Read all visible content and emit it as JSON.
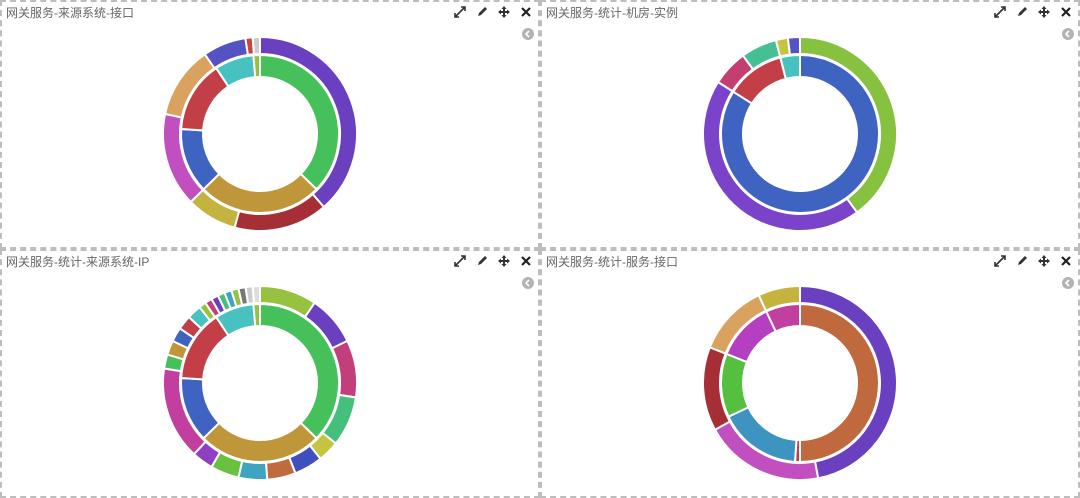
{
  "icons": [
    "expand-icon",
    "edit-icon",
    "move-icon",
    "close-icon",
    "collapse-icon"
  ],
  "panels": [
    {
      "title": "网关服务-来源系统-接口",
      "chart_data": {
        "type": "pie",
        "inner": [
          {
            "value": 28,
            "color": "#45c05a"
          },
          {
            "value": 19,
            "color": "#c0963a"
          },
          {
            "value": 10,
            "color": "#3f63c0"
          },
          {
            "value": 11,
            "color": "#c23f48"
          },
          {
            "value": 6,
            "color": "#47c2c0"
          },
          {
            "value": 1,
            "color": "#96c23f"
          }
        ],
        "outer": [
          {
            "value": 32,
            "color": "#6a3fc0"
          },
          {
            "value": 13,
            "color": "#a52f35"
          },
          {
            "value": 7,
            "color": "#c4b33f"
          },
          {
            "value": 13,
            "color": "#c24fbf"
          },
          {
            "value": 10,
            "color": "#d9a25f"
          },
          {
            "value": 6,
            "color": "#5552c4"
          },
          {
            "value": 1,
            "color": "#c2483f"
          },
          {
            "value": 1,
            "color": "#cccccc"
          }
        ]
      }
    },
    {
      "title": "网关服务-统计-机房-实例",
      "chart_data": {
        "type": "pie",
        "inner": [
          {
            "value": 84,
            "color": "#3f63c0"
          },
          {
            "value": 12,
            "color": "#c23f48"
          },
          {
            "value": 4,
            "color": "#47c2c0"
          }
        ],
        "outer": [
          {
            "value": 40,
            "color": "#86c23f"
          },
          {
            "value": 44,
            "color": "#7b43c9"
          },
          {
            "value": 6,
            "color": "#c23f6f"
          },
          {
            "value": 6,
            "color": "#45c094"
          },
          {
            "value": 2,
            "color": "#c4c43f"
          },
          {
            "value": 2,
            "color": "#5552c4"
          }
        ]
      }
    },
    {
      "title": "网关服务-统计-来源系统-IP",
      "chart_data": {
        "type": "pie",
        "inner": [
          {
            "value": 28,
            "color": "#45c05a"
          },
          {
            "value": 19,
            "color": "#c0963a"
          },
          {
            "value": 10,
            "color": "#3f63c0"
          },
          {
            "value": 11,
            "color": "#c23f48"
          },
          {
            "value": 6,
            "color": "#47c2c0"
          },
          {
            "value": 1,
            "color": "#96c23f"
          }
        ],
        "outer": [
          {
            "value": 8,
            "color": "#96c23f"
          },
          {
            "value": 7,
            "color": "#6a3fc0"
          },
          {
            "value": 8,
            "color": "#c23f7c"
          },
          {
            "value": 7,
            "color": "#45c07c"
          },
          {
            "value": 3,
            "color": "#c4c43f"
          },
          {
            "value": 4,
            "color": "#3f4fc0"
          },
          {
            "value": 4,
            "color": "#c26a3f"
          },
          {
            "value": 4,
            "color": "#3fa4c0"
          },
          {
            "value": 4,
            "color": "#6ac03f"
          },
          {
            "value": 3,
            "color": "#8f3fc0"
          },
          {
            "value": 13,
            "color": "#c23f9f"
          },
          {
            "value": 2,
            "color": "#45c05a"
          },
          {
            "value": 2,
            "color": "#c0963a"
          },
          {
            "value": 2,
            "color": "#3f63c0"
          },
          {
            "value": 2,
            "color": "#c23f48"
          },
          {
            "value": 2,
            "color": "#47c2c0"
          },
          {
            "value": 1,
            "color": "#96c23f"
          },
          {
            "value": 1,
            "color": "#c23f7c"
          },
          {
            "value": 1,
            "color": "#6a3fc0"
          },
          {
            "value": 1,
            "color": "#45c07c"
          },
          {
            "value": 1,
            "color": "#3fa4c0"
          },
          {
            "value": 1,
            "color": "#96c23f"
          },
          {
            "value": 1,
            "color": "#777777"
          },
          {
            "value": 1,
            "color": "#cccccc"
          },
          {
            "value": 1,
            "color": "#dddddd"
          }
        ]
      }
    },
    {
      "title": "网关服务-统计-服务-接口",
      "chart_data": {
        "type": "pie",
        "inner": [
          {
            "value": 50,
            "color": "#c0693f"
          },
          {
            "value": 1,
            "color": "#c23f48"
          },
          {
            "value": 17,
            "color": "#3f93c0"
          },
          {
            "value": 13,
            "color": "#55c03f"
          },
          {
            "value": 12,
            "color": "#b43fc0"
          },
          {
            "value": 7,
            "color": "#c03f9f"
          }
        ],
        "outer": [
          {
            "value": 47,
            "color": "#6a3fc0"
          },
          {
            "value": 20,
            "color": "#c24fbf"
          },
          {
            "value": 14,
            "color": "#a52f35"
          },
          {
            "value": 12,
            "color": "#d9a25f"
          },
          {
            "value": 7,
            "color": "#c4b33f"
          }
        ]
      }
    }
  ]
}
